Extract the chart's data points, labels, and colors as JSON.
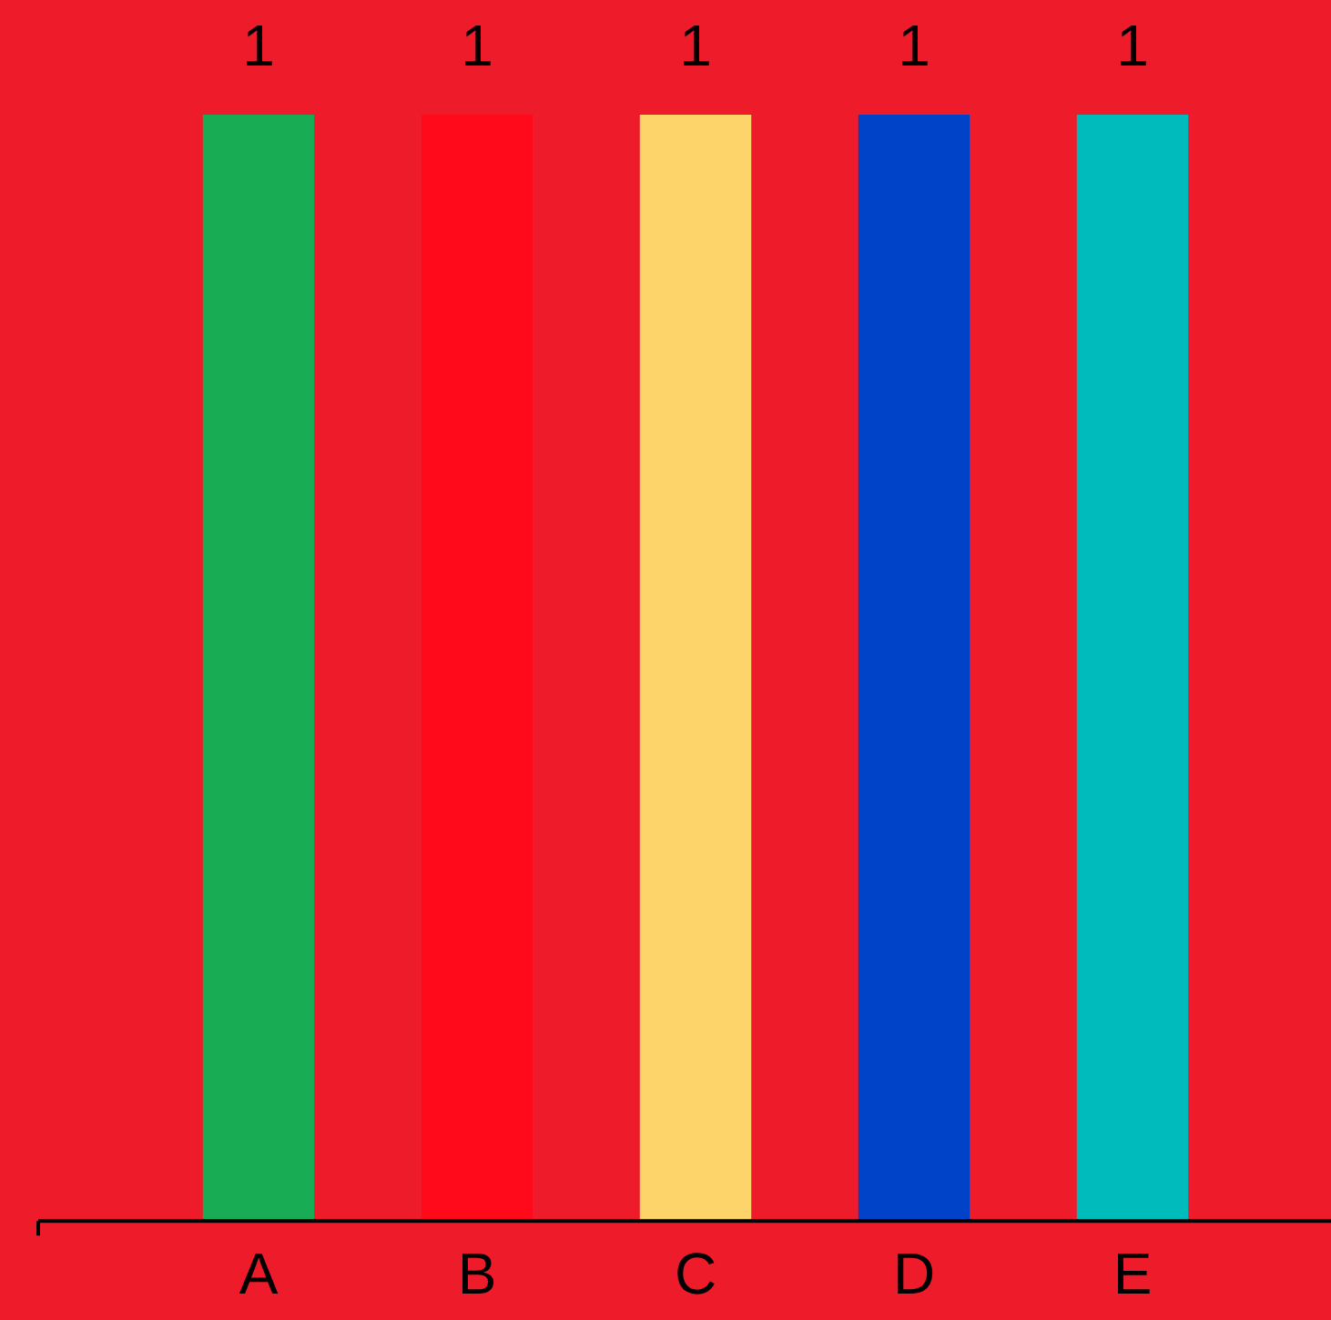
{
  "chart_data": {
    "type": "bar",
    "categories": [
      "A",
      "B",
      "C",
      "D",
      "E"
    ],
    "values": [
      1,
      1,
      1,
      1,
      1
    ],
    "colors": [
      "#18ad55",
      "#ff0a1a",
      "#fdd46a",
      "#0043c8",
      "#00bbbb"
    ],
    "ylim": [
      0,
      1
    ],
    "data_labels": true,
    "grid": false,
    "legend": false
  }
}
